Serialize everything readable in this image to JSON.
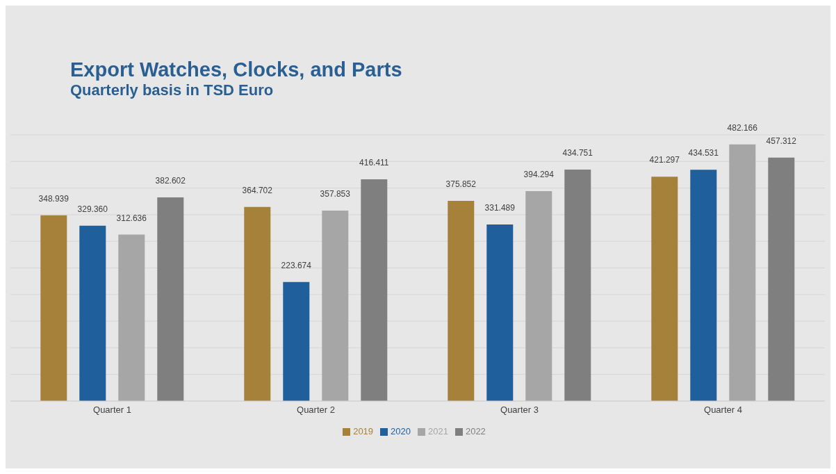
{
  "chart_data": {
    "type": "bar",
    "title": "Export Watches, Clocks, and Parts",
    "subtitle": "Quarterly basis in TSD Euro",
    "categories": [
      "Quarter 1",
      "Quarter 2",
      "Quarter 3",
      "Quarter 4"
    ],
    "series": [
      {
        "name": "2019",
        "color": "#a6813a",
        "values": [
          348.939,
          364.702,
          375.852,
          421.297
        ],
        "value_labels": [
          "348.939",
          "364.702",
          "375.852",
          "421.297"
        ]
      },
      {
        "name": "2020",
        "color": "#1f5f9b",
        "values": [
          329.36,
          223.674,
          331.489,
          434.531
        ],
        "value_labels": [
          "329.360",
          "223.674",
          "331.489",
          "434.531"
        ]
      },
      {
        "name": "2021",
        "color": "#a6a6a6",
        "values": [
          312.636,
          357.853,
          394.294,
          482.166
        ],
        "value_labels": [
          "312.636",
          "357.853",
          "394.294",
          "482.166"
        ]
      },
      {
        "name": "2022",
        "color": "#7f7f7f",
        "values": [
          382.602,
          416.411,
          434.751,
          457.312
        ],
        "value_labels": [
          "382.602",
          "416.411",
          "434.751",
          "457.312"
        ]
      }
    ],
    "ylim": [
      0,
      500
    ],
    "yticks": [
      {
        "value": 0,
        "label": null
      },
      {
        "value": 50,
        "label": null
      },
      {
        "value": 100,
        "label": null
      },
      {
        "value": 150,
        "label": null
      },
      {
        "value": 200,
        "label": null
      },
      {
        "value": 250,
        "label": null
      },
      {
        "value": 300,
        "label": null
      },
      {
        "value": 350,
        "label": null
      },
      {
        "value": 400,
        "label": null
      },
      {
        "value": 450,
        "label": null
      },
      {
        "value": 500,
        "label": null
      }
    ],
    "tick_labels": "x",
    "grid": "y",
    "legend": "bottom"
  }
}
